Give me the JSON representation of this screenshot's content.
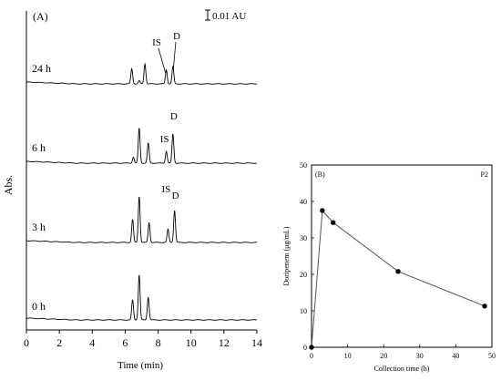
{
  "chart_data": [
    {
      "type": "line",
      "panel_label": "(A)",
      "xlabel": "Time (min)",
      "ylabel": "Abs.",
      "xlim": [
        0,
        14
      ],
      "x_ticks": [
        "0",
        "2",
        "4",
        "6",
        "8",
        "10",
        "12",
        "14"
      ],
      "scale_bar_label": "0.01 AU",
      "peak_labels": {
        "is": "IS",
        "d": "D"
      },
      "series": [
        {
          "name": "24 h",
          "peaks": [
            [
              6.4,
              0.015
            ],
            [
              6.85,
              0.003
            ],
            [
              7.2,
              0.02
            ],
            [
              8.5,
              0.014
            ],
            [
              8.9,
              0.017
            ]
          ]
        },
        {
          "name": "6 h",
          "peaks": [
            [
              6.5,
              0.006
            ],
            [
              6.85,
              0.035
            ],
            [
              7.4,
              0.02
            ],
            [
              8.5,
              0.012
            ],
            [
              8.9,
              0.029
            ]
          ]
        },
        {
          "name": "3 h",
          "peaks": [
            [
              6.45,
              0.023
            ],
            [
              6.85,
              0.046
            ],
            [
              7.45,
              0.02
            ],
            [
              8.6,
              0.013
            ],
            [
              9.0,
              0.032
            ]
          ]
        },
        {
          "name": "0 h",
          "peaks": [
            [
              6.45,
              0.02
            ],
            [
              6.85,
              0.045
            ],
            [
              7.4,
              0.023
            ]
          ]
        }
      ]
    },
    {
      "type": "scatter",
      "panel_label": "(B)",
      "corner_label": "P2",
      "xlabel": "Collection time (h)",
      "ylabel": "Doripenem (μg/mL)",
      "xlim": [
        0,
        50
      ],
      "ylim": [
        0,
        50
      ],
      "x_ticks": [
        "0",
        "10",
        "20",
        "30",
        "40",
        "50"
      ],
      "y_ticks": [
        "0",
        "10",
        "20",
        "30",
        "40",
        "50"
      ],
      "x": [
        0,
        3,
        6,
        24,
        48
      ],
      "y": [
        0,
        37.5,
        34.2,
        20.8,
        11.3
      ]
    }
  ]
}
